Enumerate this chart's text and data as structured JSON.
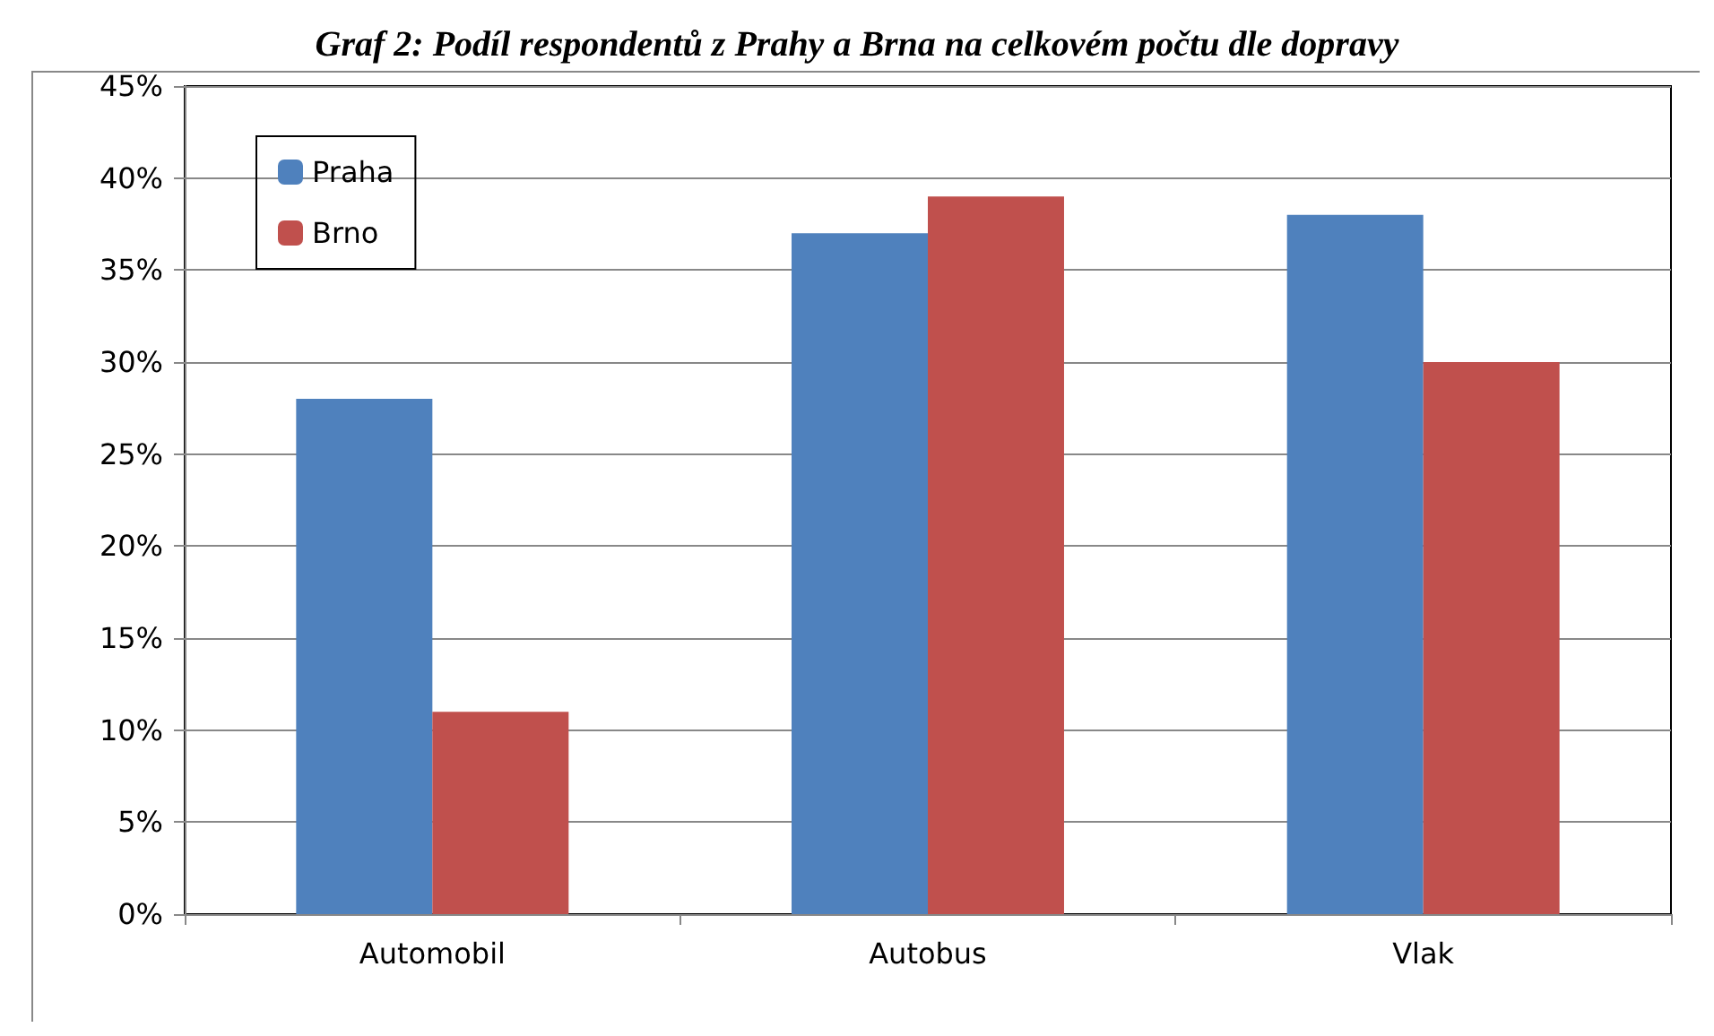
{
  "chart_data": {
    "type": "bar",
    "title": "Graf 2: Podíl respondentů z Prahy a Brna na celkovém počtu dle dopravy",
    "categories": [
      "Automobil",
      "Autobus",
      "Vlak"
    ],
    "series": [
      {
        "name": "Praha",
        "color": "#4f81bd",
        "values": [
          28,
          37,
          38
        ]
      },
      {
        "name": "Brno",
        "color": "#c0504d",
        "values": [
          11,
          39,
          30
        ]
      }
    ],
    "ylim": [
      0,
      45
    ],
    "yticks": [
      {
        "value": 0,
        "label": "0%"
      },
      {
        "value": 5,
        "label": "5%"
      },
      {
        "value": 10,
        "label": "10%"
      },
      {
        "value": 15,
        "label": "15%"
      },
      {
        "value": 20,
        "label": "20%"
      },
      {
        "value": 25,
        "label": "25%"
      },
      {
        "value": 30,
        "label": "30%"
      },
      {
        "value": 35,
        "label": "35%"
      },
      {
        "value": 40,
        "label": "40%"
      },
      {
        "value": 45,
        "label": "45%"
      }
    ],
    "grid": "y",
    "legend": "top left"
  }
}
